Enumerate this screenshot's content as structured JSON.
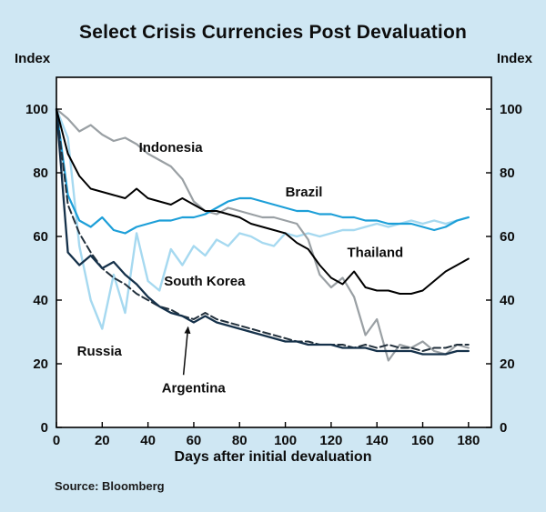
{
  "title": "Select Crisis Currencies Post Devaluation",
  "y_axis_label_left": "Index",
  "y_axis_label_right": "Index",
  "x_axis_title": "Days after initial devaluation",
  "source": "Source: Bloomberg",
  "colors": {
    "background": "#cfe7f3",
    "plot_background": "#ffffff",
    "frame": "#000000",
    "text": "#0d0d0d"
  },
  "chart_data": {
    "type": "line",
    "title": "Select Crisis Currencies Post Devaluation",
    "xlabel": "Days after initial devaluation",
    "ylabel": "Index",
    "xlim": [
      0,
      190
    ],
    "ylim": [
      0,
      110
    ],
    "x_ticks": [
      0,
      20,
      40,
      60,
      80,
      100,
      120,
      140,
      160,
      180
    ],
    "y_ticks": [
      0,
      20,
      40,
      60,
      80,
      100
    ],
    "grid": false,
    "legend": "inline-labels",
    "x": [
      0,
      5,
      10,
      15,
      20,
      25,
      30,
      35,
      40,
      45,
      50,
      55,
      60,
      65,
      70,
      75,
      80,
      85,
      90,
      95,
      100,
      105,
      110,
      115,
      120,
      125,
      130,
      135,
      140,
      145,
      150,
      155,
      160,
      165,
      170,
      175,
      180
    ],
    "series": [
      {
        "name": "South Korea",
        "color": "#a6d9f0",
        "width": 2.4,
        "dash": false,
        "values": [
          100,
          91,
          57,
          40,
          31,
          48,
          36,
          61,
          46,
          43,
          56,
          51,
          57,
          54,
          59,
          57,
          61,
          60,
          58,
          57,
          61,
          60,
          61,
          60,
          61,
          62,
          62,
          63,
          64,
          63,
          64,
          65,
          64,
          65,
          64,
          65,
          66
        ]
      },
      {
        "name": "Indonesia",
        "color": "#9aa0a4",
        "width": 2.2,
        "dash": false,
        "values": [
          100,
          97,
          93,
          95,
          92,
          90,
          91,
          89,
          86,
          84,
          82,
          78,
          71,
          68,
          67,
          69,
          68,
          67,
          66,
          66,
          65,
          64,
          59,
          48,
          44,
          47,
          41,
          29,
          34,
          21,
          26,
          25,
          27,
          24,
          23,
          26,
          25
        ]
      },
      {
        "name": "Brazil",
        "color": "#1d9fd8",
        "width": 2.2,
        "dash": false,
        "values": [
          100,
          73,
          65,
          63,
          66,
          62,
          61,
          63,
          64,
          65,
          65,
          66,
          66,
          67,
          69,
          71,
          72,
          72,
          71,
          70,
          69,
          68,
          68,
          67,
          67,
          66,
          66,
          65,
          65,
          64,
          64,
          64,
          63,
          62,
          63,
          65,
          66
        ]
      },
      {
        "name": "Argentina",
        "color": "#22303c",
        "width": 2,
        "dash": true,
        "values": [
          100,
          70,
          61,
          55,
          50,
          47,
          45,
          42,
          40,
          38,
          37,
          35,
          34,
          36,
          34,
          33,
          32,
          31,
          30,
          29,
          28,
          27,
          27,
          26,
          26,
          26,
          25,
          26,
          25,
          26,
          25,
          25,
          24,
          25,
          25,
          26,
          26
        ]
      },
      {
        "name": "Russia",
        "color": "#15314a",
        "width": 2.3,
        "dash": false,
        "values": [
          100,
          55,
          51,
          54,
          50,
          52,
          48,
          45,
          41,
          38,
          36,
          35,
          33,
          35,
          33,
          32,
          31,
          30,
          29,
          28,
          27,
          27,
          26,
          26,
          26,
          25,
          25,
          25,
          24,
          24,
          24,
          24,
          23,
          23,
          23,
          24,
          24
        ]
      },
      {
        "name": "Thailand",
        "color": "#000000",
        "width": 2,
        "dash": false,
        "values": [
          100,
          86,
          79,
          75,
          74,
          73,
          72,
          75,
          72,
          71,
          70,
          72,
          70,
          68,
          68,
          67,
          66,
          64,
          63,
          62,
          61,
          58,
          56,
          51,
          47,
          45,
          49,
          44,
          43,
          43,
          42,
          42,
          43,
          46,
          49,
          51,
          53
        ]
      }
    ],
    "annotations": [
      {
        "id": "indonesia",
        "text": "Indonesia",
        "x": 36,
        "y": 88
      },
      {
        "id": "brazil",
        "text": "Brazil",
        "x": 100,
        "y": 74
      },
      {
        "id": "thailand",
        "text": "Thailand",
        "x": 127,
        "y": 55
      },
      {
        "id": "south-korea",
        "text": "South Korea",
        "x": 47,
        "y": 46
      },
      {
        "id": "russia",
        "text": "Russia",
        "x": 9,
        "y": 24
      },
      {
        "id": "argentina",
        "text": "Argentina",
        "x": 46,
        "y": 12.5
      }
    ],
    "arrow": {
      "x1": 55.5,
      "y1": 16.5,
      "x2": 57.5,
      "y2": 31.5
    }
  }
}
